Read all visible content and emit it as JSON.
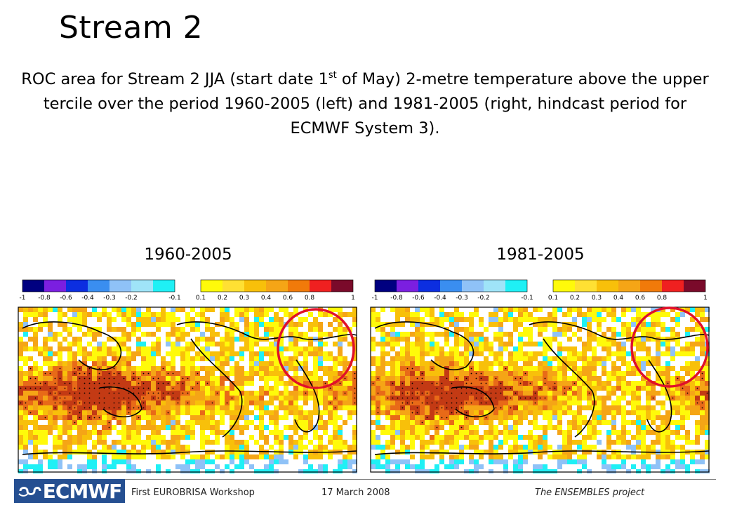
{
  "slide": {
    "title": "Stream 2",
    "subtitle_part1": "ROC area for Stream 2 JJA (start date 1",
    "subtitle_sup": "st",
    "subtitle_part2": " of May) 2-metre temperature above the upper tercile over the period 1960-2005 (left) and 1981-2005 (right, hindcast period for ECMWF System 3)."
  },
  "maps": [
    {
      "label": "1960-2005",
      "colorbar_ticks": [
        "-1",
        "-0.8",
        "-0.6",
        "-0.4",
        "-0.3",
        "-0.2",
        "-0.1",
        "0.1",
        "0.2",
        "0.3",
        "0.4",
        "0.6",
        "0.8",
        "1"
      ],
      "circle_color": "#e0102a"
    },
    {
      "label": "1981-2005",
      "colorbar_ticks": [
        "-1",
        "-0.8",
        "-0.6",
        "-0.4",
        "-0.3",
        "-0.2",
        "-0.1",
        "0.1",
        "0.2",
        "0.3",
        "0.4",
        "0.6",
        "0.8",
        "1"
      ],
      "circle_color": "#e0102a"
    }
  ],
  "colorbar": {
    "negative_colors": [
      "#000080",
      "#7b1fe0",
      "#0c2ee0",
      "#3a8ef0",
      "#8fc2f7",
      "#9fe4f8",
      "#1ff0f5"
    ],
    "positive_colors": [
      "#fffa0a",
      "#ffe033",
      "#f8c00a",
      "#f5a516",
      "#f17a0a",
      "#ef2020",
      "#7a0a2a"
    ]
  },
  "footer": {
    "logo_text": "ECMWF",
    "workshop": "First EUROBRISA Workshop",
    "date": "17 March 2008",
    "project": "The ENSEMBLES project"
  }
}
